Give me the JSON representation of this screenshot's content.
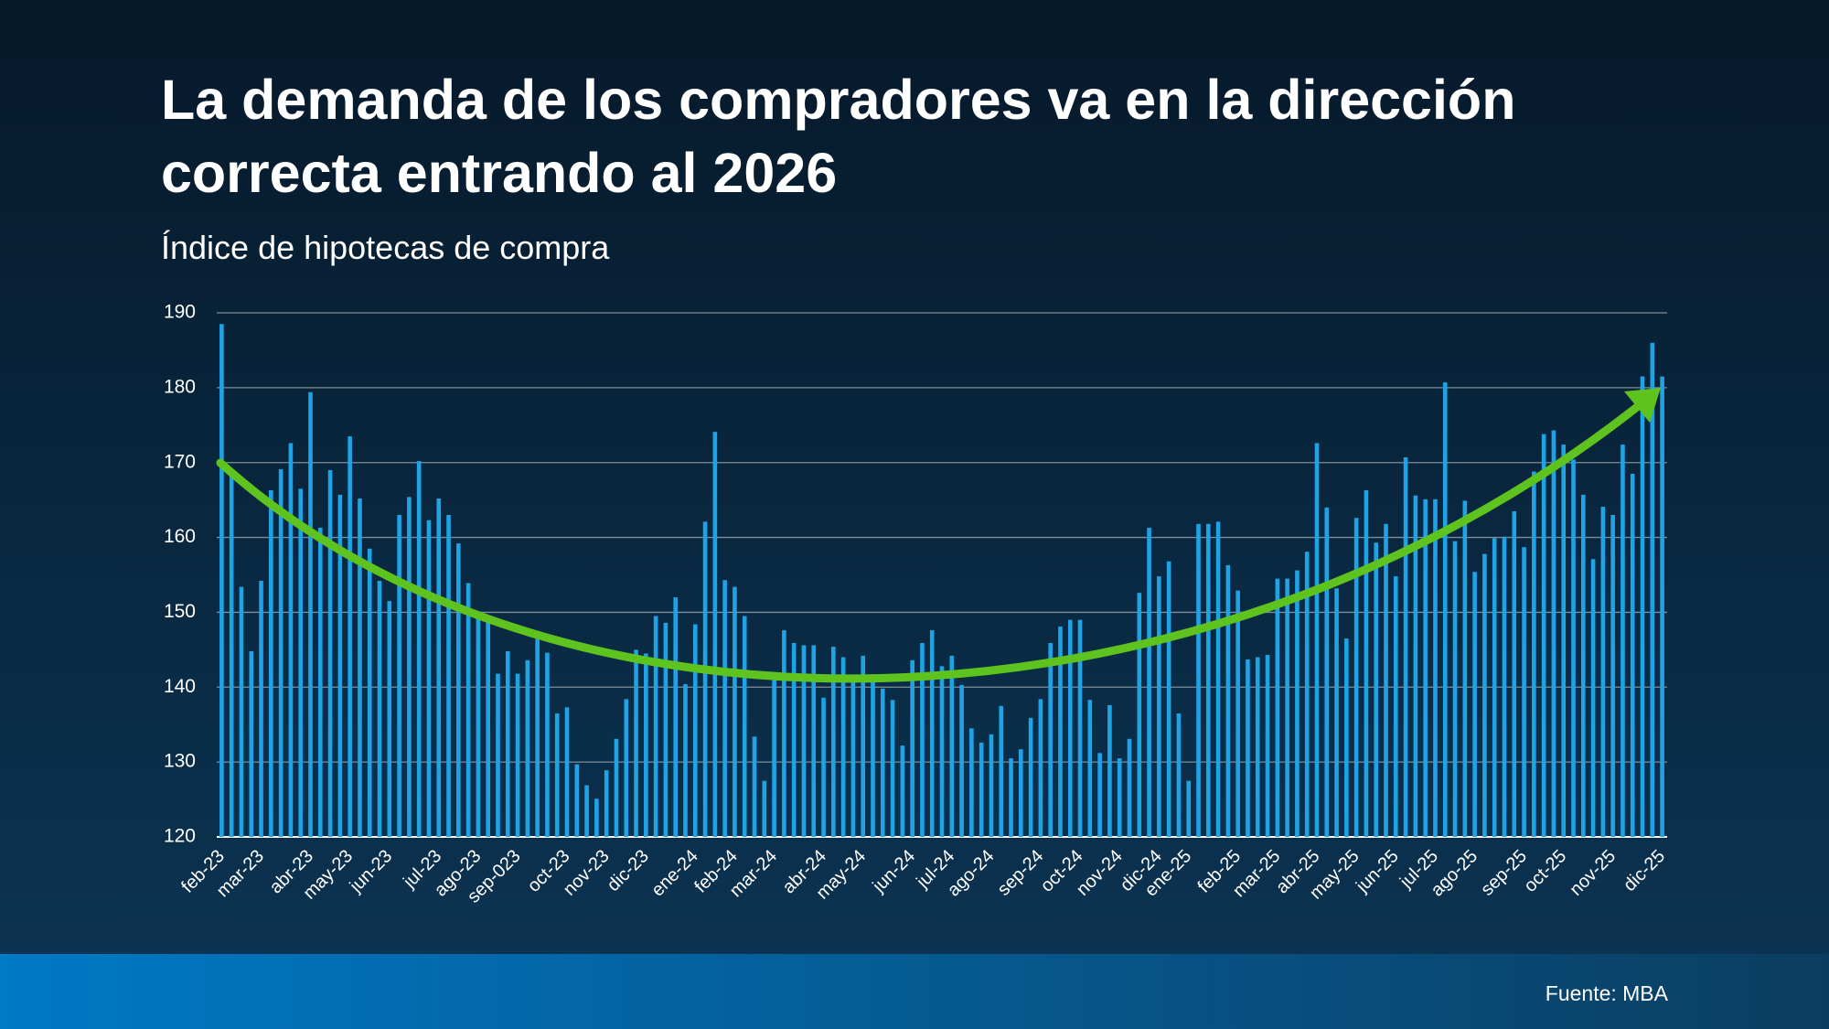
{
  "chart_data": {
    "type": "bar",
    "title": [
      "La demanda de los compradores va en la dirección",
      "correcta entrando al 2026"
    ],
    "subtitle": "Índice de hipotecas de compra",
    "source": "Fuente: MBA",
    "color": "#1ea4e6",
    "grid": true,
    "ylim": [
      120,
      190
    ],
    "yticks": [
      120,
      130,
      140,
      150,
      160,
      170,
      180,
      190
    ],
    "categories": [
      "feb-23",
      null,
      null,
      null,
      "mar-23",
      null,
      null,
      null,
      null,
      "abr-23",
      null,
      null,
      null,
      "may-23",
      null,
      null,
      null,
      "jun-23",
      null,
      null,
      null,
      null,
      "jul-23",
      null,
      null,
      null,
      "ago-23",
      null,
      null,
      null,
      "sep-023",
      null,
      null,
      null,
      null,
      "oct-23",
      null,
      null,
      null,
      "nov-23",
      null,
      null,
      null,
      "dic-23",
      null,
      null,
      null,
      null,
      "ene-24",
      null,
      null,
      null,
      "feb-24",
      null,
      null,
      null,
      "mar-24",
      null,
      null,
      null,
      null,
      "abr-24",
      null,
      null,
      null,
      "may-24",
      null,
      null,
      null,
      null,
      "jun-24",
      null,
      null,
      null,
      "jul-24",
      null,
      null,
      null,
      "ago-24",
      null,
      null,
      null,
      null,
      "sep-24",
      null,
      null,
      null,
      "oct-24",
      null,
      null,
      null,
      "nov-24",
      null,
      null,
      null,
      "dic-24",
      null,
      null,
      "ene-25",
      null,
      null,
      null,
      null,
      "feb-25",
      null,
      null,
      null,
      "mar-25",
      null,
      null,
      null,
      "abr-25",
      null,
      null,
      null,
      "may-25",
      null,
      null,
      null,
      "jun-25",
      null,
      null,
      null,
      "jul-25",
      null,
      null,
      null,
      "ago-25",
      null,
      null,
      null,
      null,
      "sep-25",
      null,
      null,
      null,
      "oct-25",
      null,
      null,
      null,
      null,
      "nov-25",
      null,
      null,
      null,
      null,
      "dic-25"
    ],
    "values": [
      188.5,
      168.7,
      153.4,
      144.8,
      154.2,
      166.3,
      169.1,
      172.6,
      166.5,
      179.4,
      161.3,
      169,
      165.7,
      173.5,
      165.2,
      158.5,
      154.2,
      151.5,
      163,
      165.4,
      170.2,
      162.3,
      165.2,
      163,
      159.2,
      153.9,
      150,
      149.3,
      141.8,
      144.8,
      141.8,
      143.6,
      146.8,
      144.6,
      136.5,
      137.3,
      129.7,
      126.9,
      125.1,
      128.9,
      133.1,
      138.4,
      145,
      144.5,
      149.5,
      148.6,
      152,
      140.4,
      148.4,
      162.1,
      174.1,
      154.3,
      153.4,
      149.5,
      133.4,
      127.5,
      141.1,
      147.6,
      145.9,
      145.6,
      145.6,
      138.6,
      145.4,
      144,
      141.2,
      144.2,
      141.7,
      139.8,
      138.3,
      132.2,
      143.6,
      145.9,
      147.6,
      142.8,
      144.2,
      140.3,
      134.5,
      132.6,
      133.7,
      137.5,
      130.5,
      131.7,
      135.9,
      138.4,
      145.9,
      148.1,
      149,
      149,
      138.3,
      131.2,
      137.6,
      130.5,
      133.1,
      152.6,
      161.3,
      154.8,
      156.8,
      136.5,
      127.5,
      161.8,
      161.8,
      162.1,
      156.3,
      152.9,
      143.7,
      144,
      144.3,
      154.5,
      154.5,
      155.6,
      158.1,
      172.6,
      164,
      153.2,
      146.5,
      162.6,
      166.3,
      159.3,
      161.8,
      154.8,
      170.7,
      165.6,
      165.1,
      165.1,
      180.7,
      159.5,
      164.9,
      155.4,
      157.8,
      159.9,
      160.1,
      163.5,
      158.7,
      168.8,
      173.8,
      174.3,
      172.4,
      170.4,
      165.7,
      157.1,
      164.1,
      163,
      172.4,
      168.5,
      181.5,
      186,
      181.5
    ]
  }
}
